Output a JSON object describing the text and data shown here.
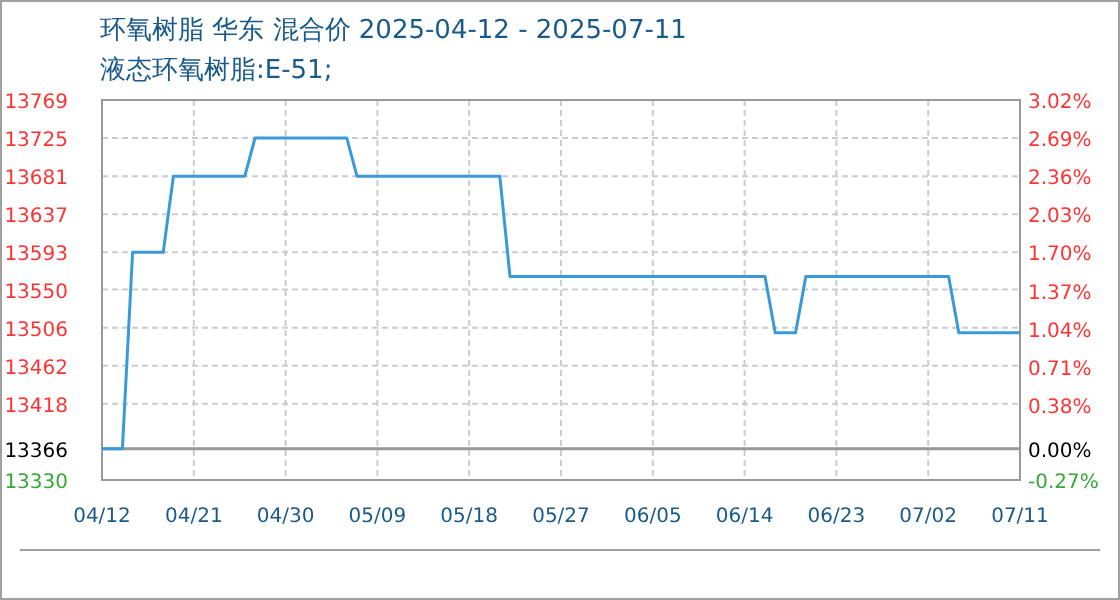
{
  "chart_data": {
    "type": "line",
    "title": "环氧树脂 华东 混合价 2025-04-12 - 2025-07-11",
    "subtitle": "液态环氧树脂:E-51;",
    "x": [
      "2025-04-12",
      "2025-04-14",
      "2025-04-15",
      "2025-04-18",
      "2025-04-19",
      "2025-04-26",
      "2025-04-27",
      "2025-05-06",
      "2025-05-07",
      "2025-05-21",
      "2025-05-22",
      "2025-06-16",
      "2025-06-17",
      "2025-06-19",
      "2025-06-20",
      "2025-07-04",
      "2025-07-05",
      "2025-07-11"
    ],
    "series": [
      {
        "color": "#3a9ad9",
        "values": [
          13366,
          13366,
          13593,
          13593,
          13681,
          13681,
          13725,
          13725,
          13681,
          13681,
          13565,
          13565,
          13500,
          13500,
          13565,
          13565,
          13500,
          13500
        ]
      }
    ],
    "xlim": [
      "2025-04-12",
      "2025-07-11"
    ],
    "xticks": [
      {
        "value": "2025-04-12",
        "label": "04/12"
      },
      {
        "value": "2025-04-21",
        "label": "04/21"
      },
      {
        "value": "2025-04-30",
        "label": "04/30"
      },
      {
        "value": "2025-05-09",
        "label": "05/09"
      },
      {
        "value": "2025-05-18",
        "label": "05/18"
      },
      {
        "value": "2025-05-27",
        "label": "05/27"
      },
      {
        "value": "2025-06-05",
        "label": "06/05"
      },
      {
        "value": "2025-06-14",
        "label": "06/14"
      },
      {
        "value": "2025-06-23",
        "label": "06/23"
      },
      {
        "value": "2025-07-02",
        "label": "07/02"
      },
      {
        "value": "2025-07-11",
        "label": "07/11"
      }
    ],
    "ylim": [
      13330,
      13769
    ],
    "yticks": [
      13330,
      13366,
      13418,
      13462,
      13506,
      13550,
      13593,
      13637,
      13681,
      13725,
      13769
    ],
    "y2lim": [
      -0.27,
      3.02
    ],
    "y2ticks": [
      {
        "value": -0.27,
        "label": "-0.27%"
      },
      {
        "value": 0,
        "label": "0.00%"
      },
      {
        "value": 0.38,
        "label": "0.38%"
      },
      {
        "value": 0.71,
        "label": "0.71%"
      },
      {
        "value": 1.04,
        "label": "1.04%"
      },
      {
        "value": 1.37,
        "label": "1.37%"
      },
      {
        "value": 1.7,
        "label": "1.70%"
      },
      {
        "value": 2.03,
        "label": "2.03%"
      },
      {
        "value": 2.36,
        "label": "2.36%"
      },
      {
        "value": 2.69,
        "label": "2.69%"
      },
      {
        "value": 3.02,
        "label": "3.02%"
      }
    ],
    "ref_lines": [
      {
        "axis": "y",
        "value": 13366,
        "color": "#999999"
      }
    ],
    "grid": true,
    "marker": "none",
    "line_style": "solid"
  }
}
